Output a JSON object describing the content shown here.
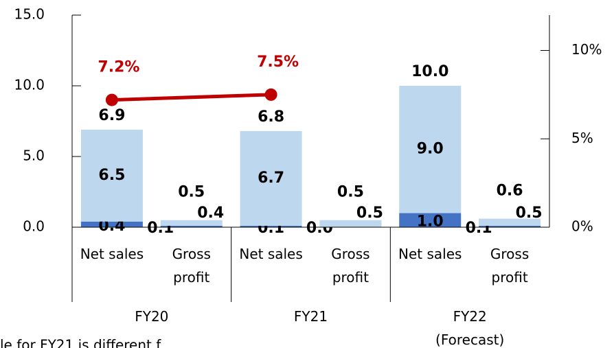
{
  "chart_data": {
    "type": "bar",
    "stacked": true,
    "categories": [
      "Net sales",
      "Gross profit",
      "Net sales",
      "Gross profit",
      "Net sales",
      "Gross profit"
    ],
    "groups": [
      "FY20",
      "FY21",
      "FY22 (Forecast)"
    ],
    "series": [
      {
        "color": "#4472c4",
        "values": [
          0.4,
          0.1,
          0.1,
          0.0,
          1.0,
          0.1
        ],
        "value_labels": [
          "0.4",
          "0.1",
          "0.1",
          "0.0",
          "1.0",
          "0.1"
        ]
      },
      {
        "color": "#bdd7ee",
        "values": [
          6.5,
          0.4,
          6.7,
          0.5,
          9.0,
          0.5
        ],
        "value_labels": [
          "6.5",
          "0.4",
          "6.7",
          "0.5",
          "9.0",
          "0.5"
        ]
      }
    ],
    "total_labels": [
      "6.9",
      "0.5",
      "6.8",
      "0.5",
      "10.0",
      "0.6"
    ],
    "line": {
      "type": "line",
      "axis": "y2",
      "color": "#c00000",
      "values": [
        7.2,
        7.5,
        null
      ],
      "value_labels": [
        "7.2%",
        "7.5%",
        null
      ]
    },
    "ylim": [
      0,
      15
    ],
    "yticks": [
      {
        "value": 0,
        "label": "0.0"
      },
      {
        "value": 5,
        "label": "5.0"
      },
      {
        "value": 10,
        "label": "10.0"
      },
      {
        "value": 15,
        "label": "15.0"
      }
    ],
    "y2lim": [
      0,
      12
    ],
    "y2ticks": [
      {
        "value": 0,
        "label": "0%"
      },
      {
        "value": 5,
        "label": "5%"
      },
      {
        "value": 10,
        "label": "10%"
      }
    ],
    "note": "le for FY21 is different f"
  }
}
